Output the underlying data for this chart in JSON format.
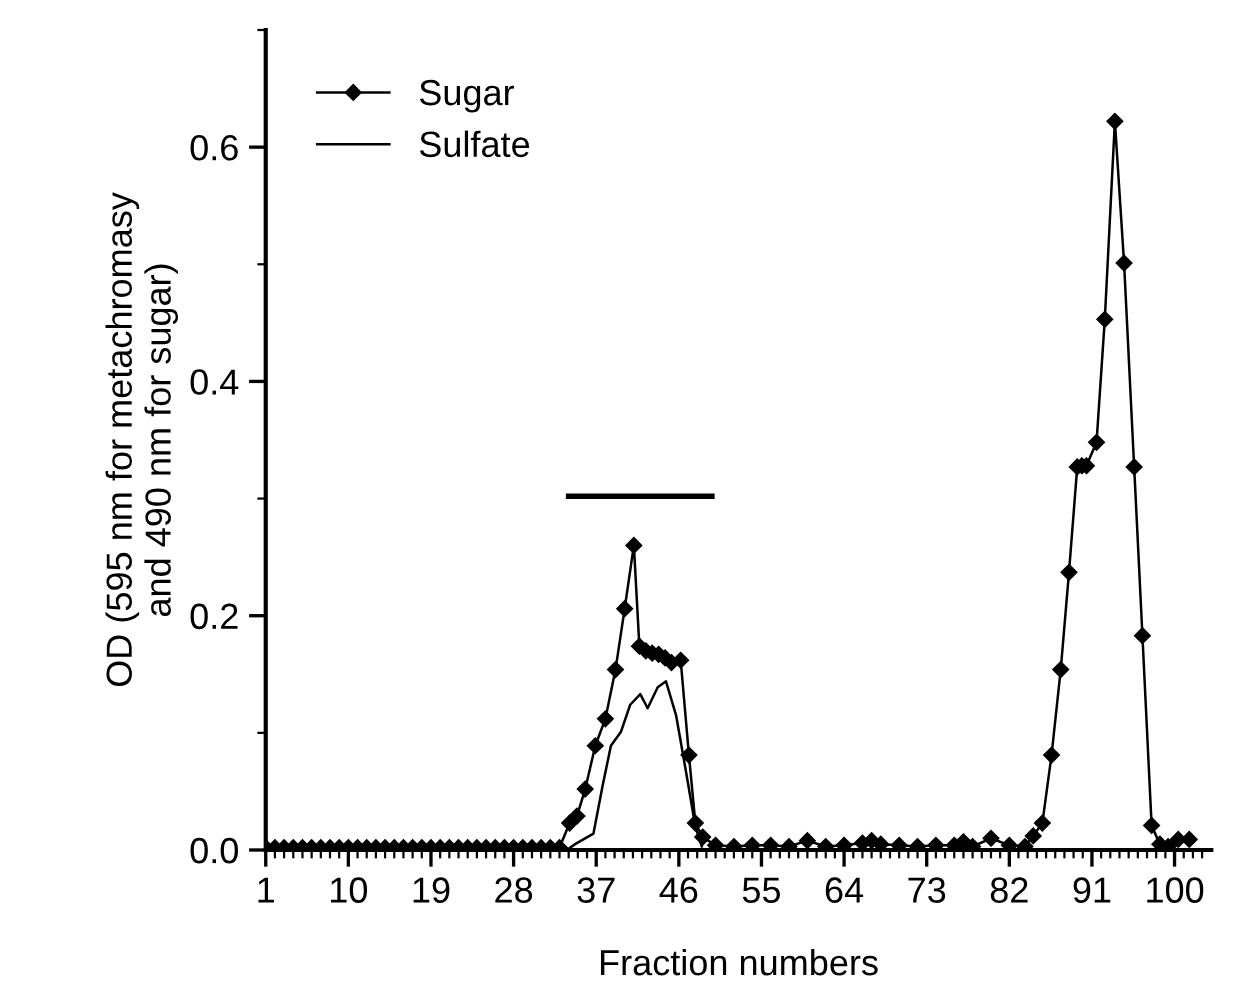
{
  "chart_data": {
    "type": "line",
    "xlabel": "Fraction numbers",
    "ylabel": "OD (595 nm for metachromasy\nand 490 nm for sugar)",
    "xlim": [
      1,
      104
    ],
    "ylim": [
      0,
      0.7
    ],
    "xticks": [
      1,
      10,
      19,
      28,
      37,
      46,
      55,
      64,
      73,
      82,
      91,
      100,
      {
        "value": 2,
        "label": null
      },
      {
        "value": 3,
        "label": null
      },
      {
        "value": 4,
        "label": null
      },
      {
        "value": 5,
        "label": null
      },
      {
        "value": 6,
        "label": null
      },
      {
        "value": 7,
        "label": null
      },
      {
        "value": 8,
        "label": null
      },
      {
        "value": 9,
        "label": null
      },
      {
        "value": 11,
        "label": null
      },
      {
        "value": 12,
        "label": null
      },
      {
        "value": 13,
        "label": null
      },
      {
        "value": 14,
        "label": null
      },
      {
        "value": 15,
        "label": null
      },
      {
        "value": 16,
        "label": null
      },
      {
        "value": 17,
        "label": null
      },
      {
        "value": 18,
        "label": null
      },
      {
        "value": 20,
        "label": null
      },
      {
        "value": 21,
        "label": null
      },
      {
        "value": 22,
        "label": null
      },
      {
        "value": 23,
        "label": null
      },
      {
        "value": 24,
        "label": null
      },
      {
        "value": 25,
        "label": null
      },
      {
        "value": 26,
        "label": null
      },
      {
        "value": 27,
        "label": null
      },
      {
        "value": 29,
        "label": null
      },
      {
        "value": 30,
        "label": null
      },
      {
        "value": 31,
        "label": null
      },
      {
        "value": 32,
        "label": null
      },
      {
        "value": 33,
        "label": null
      },
      {
        "value": 34,
        "label": null
      },
      {
        "value": 35,
        "label": null
      },
      {
        "value": 36,
        "label": null
      },
      {
        "value": 38,
        "label": null
      },
      {
        "value": 39,
        "label": null
      },
      {
        "value": 40,
        "label": null
      },
      {
        "value": 41,
        "label": null
      },
      {
        "value": 42,
        "label": null
      },
      {
        "value": 43,
        "label": null
      },
      {
        "value": 44,
        "label": null
      },
      {
        "value": 45,
        "label": null
      },
      {
        "value": 47,
        "label": null
      },
      {
        "value": 48,
        "label": null
      },
      {
        "value": 49,
        "label": null
      },
      {
        "value": 50,
        "label": null
      },
      {
        "value": 51,
        "label": null
      },
      {
        "value": 52,
        "label": null
      },
      {
        "value": 53,
        "label": null
      },
      {
        "value": 54,
        "label": null
      },
      {
        "value": 56,
        "label": null
      },
      {
        "value": 57,
        "label": null
      },
      {
        "value": 58,
        "label": null
      },
      {
        "value": 59,
        "label": null
      },
      {
        "value": 60,
        "label": null
      },
      {
        "value": 61,
        "label": null
      },
      {
        "value": 62,
        "label": null
      },
      {
        "value": 63,
        "label": null
      },
      {
        "value": 65,
        "label": null
      },
      {
        "value": 66,
        "label": null
      },
      {
        "value": 67,
        "label": null
      },
      {
        "value": 68,
        "label": null
      },
      {
        "value": 69,
        "label": null
      },
      {
        "value": 70,
        "label": null
      },
      {
        "value": 71,
        "label": null
      },
      {
        "value": 72,
        "label": null
      },
      {
        "value": 74,
        "label": null
      },
      {
        "value": 75,
        "label": null
      },
      {
        "value": 76,
        "label": null
      },
      {
        "value": 77,
        "label": null
      },
      {
        "value": 78,
        "label": null
      },
      {
        "value": 79,
        "label": null
      },
      {
        "value": 80,
        "label": null
      },
      {
        "value": 81,
        "label": null
      },
      {
        "value": 83,
        "label": null
      },
      {
        "value": 84,
        "label": null
      },
      {
        "value": 85,
        "label": null
      },
      {
        "value": 86,
        "label": null
      },
      {
        "value": 87,
        "label": null
      },
      {
        "value": 88,
        "label": null
      },
      {
        "value": 89,
        "label": null
      },
      {
        "value": 90,
        "label": null
      },
      {
        "value": 92,
        "label": null
      },
      {
        "value": 93,
        "label": null
      },
      {
        "value": 94,
        "label": null
      },
      {
        "value": 95,
        "label": null
      },
      {
        "value": 96,
        "label": null
      },
      {
        "value": 97,
        "label": null
      },
      {
        "value": 98,
        "label": null
      },
      {
        "value": 99,
        "label": null
      },
      {
        "value": 101,
        "label": null
      },
      {
        "value": 102,
        "label": null
      },
      {
        "value": 103,
        "label": null
      }
    ],
    "yticks": [
      {
        "value": 0,
        "label": "0.0"
      },
      {
        "value": 0.2,
        "label": "0.2"
      },
      {
        "value": 0.4,
        "label": "0.4"
      },
      {
        "value": 0.6,
        "label": "0.6"
      },
      {
        "value": 0.1,
        "label": null
      },
      {
        "value": 0.3,
        "label": null
      },
      {
        "value": 0.5,
        "label": null
      },
      {
        "value": 0.7,
        "label": null
      }
    ],
    "legend": "top left",
    "grid": false,
    "line_style": "solid",
    "series": [
      {
        "name": "Sugar",
        "color": "#000000",
        "marker": "diamond",
        "x": [
          1,
          2,
          3,
          4,
          5,
          6,
          7,
          8,
          9,
          10,
          11,
          12,
          13,
          14,
          15,
          16,
          17,
          18,
          19,
          20,
          21,
          22,
          23,
          24,
          25,
          26,
          27,
          28,
          29,
          30,
          31,
          32,
          33,
          34.1,
          34.9,
          35.8,
          36.9,
          38.0,
          39.1,
          40.1,
          41.1,
          41.7,
          42.4,
          43.1,
          43.8,
          44.5,
          45.2,
          46.2,
          47.1,
          47.8,
          48.6,
          50,
          52,
          54,
          56,
          58,
          60,
          62,
          64,
          66,
          67,
          68,
          70,
          72,
          74,
          76,
          77,
          78,
          80,
          82,
          83.7,
          84.6,
          85.6,
          86.6,
          87.6,
          88.5,
          89.4,
          89.9,
          90.4,
          91.5,
          92.4,
          93.5,
          94.5,
          95.6,
          96.5,
          97.5,
          98.4,
          99.3,
          100.4,
          101.6
        ],
        "values": [
          0.002,
          0.002,
          0.002,
          0.002,
          0.002,
          0.002,
          0.002,
          0.002,
          0.002,
          0.002,
          0.002,
          0.002,
          0.002,
          0.002,
          0.002,
          0.002,
          0.002,
          0.002,
          0.002,
          0.002,
          0.002,
          0.002,
          0.002,
          0.002,
          0.002,
          0.002,
          0.002,
          0.002,
          0.002,
          0.002,
          0.002,
          0.002,
          0.002,
          0.023,
          0.029,
          0.052,
          0.089,
          0.112,
          0.154,
          0.206,
          0.26,
          0.174,
          0.17,
          0.168,
          0.167,
          0.164,
          0.16,
          0.162,
          0.081,
          0.023,
          0.011,
          0.004,
          0.003,
          0.004,
          0.004,
          0.003,
          0.008,
          0.003,
          0.004,
          0.006,
          0.008,
          0.005,
          0.004,
          0.003,
          0.004,
          0.004,
          0.007,
          0.003,
          0.01,
          0.004,
          0.003,
          0.012,
          0.023,
          0.081,
          0.154,
          0.237,
          0.327,
          0.328,
          0.328,
          0.348,
          0.453,
          0.622,
          0.501,
          0.327,
          0.183,
          0.021,
          0.005,
          0.003,
          0.009,
          0.009
        ]
      },
      {
        "name": "Sulfate",
        "color": "#000000",
        "marker": "none",
        "x": [
          1,
          3,
          5,
          7,
          9,
          11,
          13,
          15,
          17,
          19,
          21,
          23,
          25,
          27,
          29,
          31,
          33.8,
          34.7,
          36.7,
          37.7,
          38.6,
          39.7,
          40.7,
          41.8,
          42.6,
          43.7,
          44.6,
          45.7,
          46.8,
          47.8,
          48.5
        ],
        "values": [
          0.001,
          0.001,
          0.001,
          0.001,
          0.001,
          0.001,
          0.001,
          0.001,
          0.001,
          0.001,
          0.001,
          0.001,
          0.001,
          0.001,
          0.001,
          0.001,
          0,
          0.005,
          0.014,
          0.055,
          0.089,
          0.101,
          0.124,
          0.133,
          0.121,
          0.139,
          0.144,
          0.115,
          0.066,
          0.02,
          0.003
        ]
      },
      {
        "color": "#000000",
        "marker": "none",
        "x": [
          34.0,
          49.6
        ],
        "values": [
          0.302,
          0.302
        ]
      }
    ]
  }
}
